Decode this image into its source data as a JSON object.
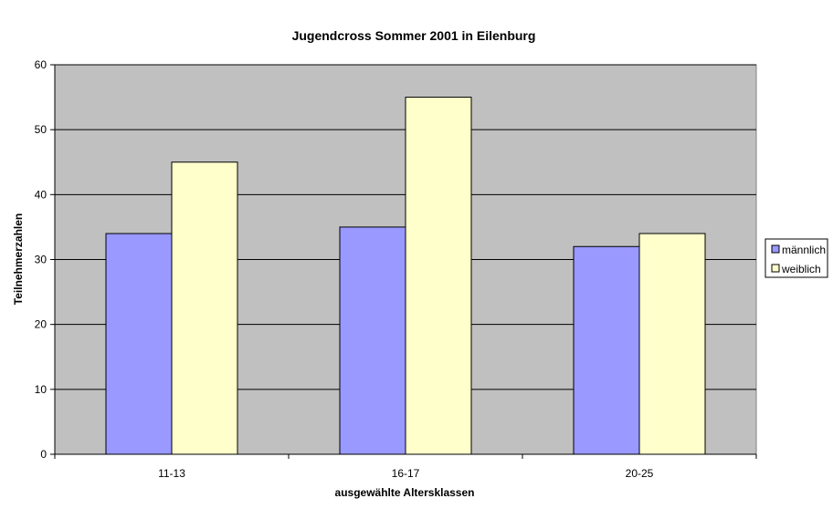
{
  "chart_data": {
    "type": "bar",
    "title": "Jugendcross Sommer 2001 in Eilenburg",
    "xlabel": "ausgewählte Altersklassen",
    "ylabel": "Teilnehmerzahlen",
    "categories": [
      "11-13",
      "16-17",
      "20-25"
    ],
    "series": [
      {
        "name": "männlich",
        "values": [
          34,
          35,
          32
        ],
        "color": "#9999ff"
      },
      {
        "name": "weiblich",
        "values": [
          45,
          55,
          34
        ],
        "color": "#ffffcc"
      }
    ],
    "ylim": [
      0,
      60
    ],
    "yticks": [
      0,
      10,
      20,
      30,
      40,
      50,
      60
    ],
    "grid": true,
    "plot_background": "#c0c0c0",
    "legend_position": "right"
  }
}
